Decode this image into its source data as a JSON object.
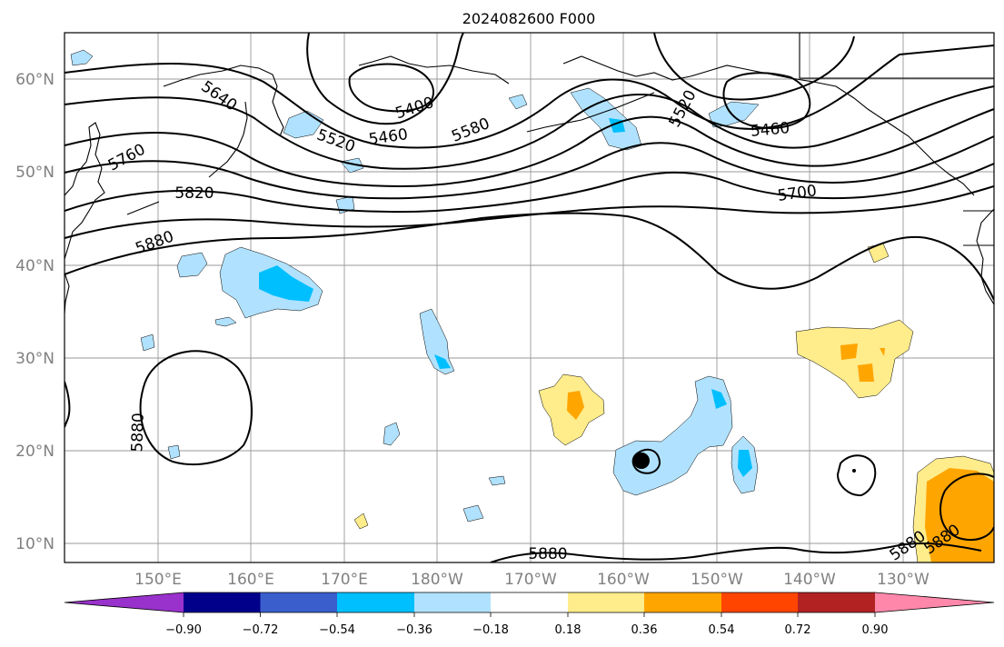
{
  "title": "2024082600 F000",
  "lat_labels": [
    "60°N",
    "50°N",
    "40°N",
    "30°N",
    "20°N",
    "10°N"
  ],
  "lon_labels": [
    "150°E",
    "160°E",
    "170°E",
    "180°W",
    "170°W",
    "160°W",
    "150°W",
    "140°W",
    "130°W"
  ],
  "contour_labels": [
    "5400",
    "5460",
    "5460",
    "5520",
    "5580",
    "5640",
    "5700",
    "5760",
    "5820",
    "5880",
    "5880",
    "5880",
    "5880",
    "5880",
    "5520"
  ],
  "colorbar": {
    "ticks": [
      "−0.90",
      "−0.72",
      "−0.54",
      "−0.36",
      "−0.18",
      "0.18",
      "0.36",
      "0.54",
      "0.72",
      "0.90"
    ],
    "colors": [
      "#9932cc",
      "#00008b",
      "#3a5fcd",
      "#00bfff",
      "#b0e2ff",
      "#ffffff",
      "#ffec8b",
      "#ffa500",
      "#ff4500",
      "#b22222",
      "#ff88aa"
    ]
  }
}
